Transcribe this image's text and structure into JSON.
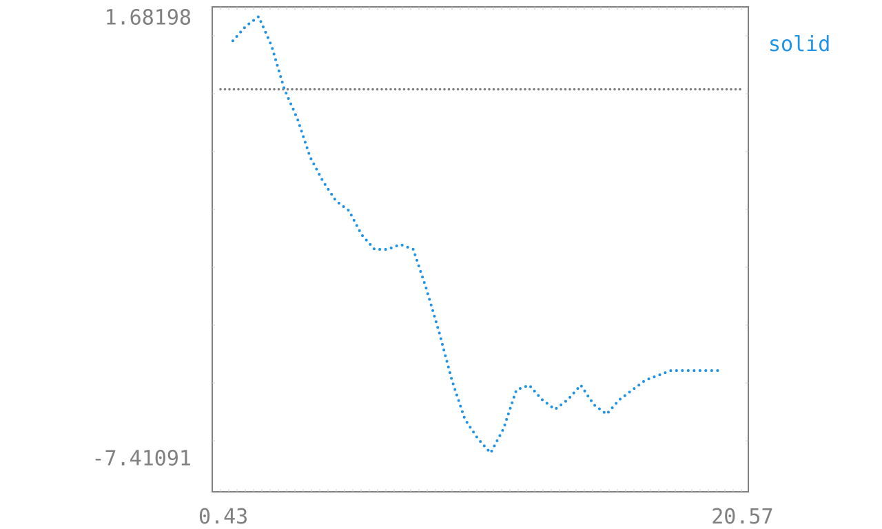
{
  "chart_data": {
    "type": "line",
    "title": "",
    "xlabel": "",
    "ylabel": "",
    "xlim": [
      0.0,
      20.8
    ],
    "ylim": [
      -8.1,
      1.9
    ],
    "x_ticks": [
      0.43,
      20.57
    ],
    "y_ticks": [
      1.68198,
      -7.41091
    ],
    "x_tick_labels": [
      "0.43",
      "20.57"
    ],
    "y_tick_labels": [
      "1.68198",
      "-7.41091"
    ],
    "grid": false,
    "legend_position": "top-right, outside plot",
    "reference_line": {
      "y": 0.2,
      "style": "dotted",
      "color": "#808080"
    },
    "series": [
      {
        "name": "solid",
        "color": "#1f93e5",
        "style": "dotted",
        "x": [
          0.8,
          1.3,
          1.8,
          2.3,
          2.8,
          3.3,
          3.8,
          4.3,
          4.8,
          5.3,
          5.8,
          6.3,
          6.8,
          7.3,
          7.8,
          8.3,
          8.8,
          9.3,
          9.8,
          10.3,
          10.8,
          11.3,
          11.8,
          12.3,
          12.8,
          13.3,
          13.8,
          14.3,
          14.8,
          15.3,
          15.8,
          16.3,
          16.8,
          17.3,
          17.8,
          18.3,
          18.8,
          19.3,
          19.8
        ],
        "y": [
          1.2,
          1.5,
          1.7,
          1.1,
          0.2,
          -0.4,
          -1.2,
          -1.7,
          -2.1,
          -2.3,
          -2.8,
          -3.1,
          -3.1,
          -3.0,
          -3.1,
          -3.9,
          -4.8,
          -5.8,
          -6.6,
          -7.0,
          -7.3,
          -6.8,
          -6.0,
          -5.9,
          -6.2,
          -6.4,
          -6.2,
          -5.9,
          -6.3,
          -6.5,
          -6.2,
          -6.0,
          -5.8,
          -5.7,
          -5.6,
          -5.6,
          -5.6,
          -5.6,
          -5.6
        ]
      }
    ]
  }
}
